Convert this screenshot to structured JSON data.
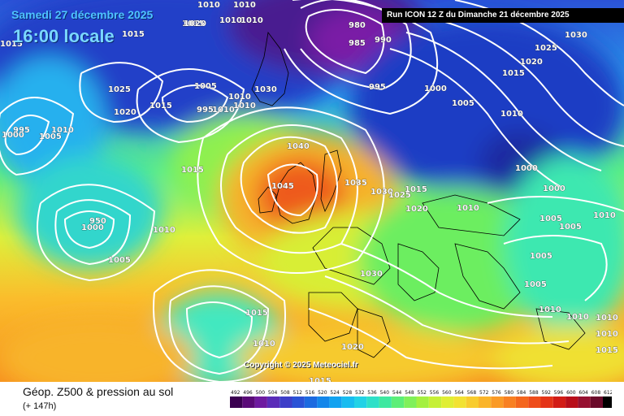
{
  "header": {
    "date_label": "Samedi 27 décembre 2025",
    "time_label": "16:00 locale",
    "run_label": "Run ICON 12 Z du Dimanche 21 décembre 2025"
  },
  "copyright": "Copyright © 2025 Meteociel.fr",
  "footer": {
    "title": "Géop. Z500 & pression au sol",
    "subtitle": "(+ 147h)"
  },
  "legend": {
    "ticks": [
      "492",
      "496",
      "500",
      "504",
      "508",
      "512",
      "516",
      "520",
      "524",
      "528",
      "532",
      "536",
      "540",
      "544",
      "548",
      "552",
      "556",
      "560",
      "564",
      "568",
      "572",
      "576",
      "580",
      "584",
      "588",
      "592",
      "596",
      "600",
      "604",
      "608",
      "612"
    ],
    "colors": [
      "#3a0050",
      "#5a0a78",
      "#6e1aa0",
      "#5a2cb8",
      "#3d3ec8",
      "#2a52d6",
      "#1c6ae0",
      "#1486ea",
      "#12a2f0",
      "#18bcf0",
      "#22d2e6",
      "#2ee0c8",
      "#3ee8a0",
      "#5cee78",
      "#80f05a",
      "#a4f040",
      "#c6f036",
      "#e0ee34",
      "#f2e232",
      "#f8cc2e",
      "#fab42a",
      "#fa9a26",
      "#f88022",
      "#f4661e",
      "#ee4c1a",
      "#e43418",
      "#d21c16",
      "#b80e1a",
      "#961030",
      "#6a0a2a",
      "#000000"
    ]
  },
  "isobar_labels": [
    {
      "id": "l1010a",
      "text": "1010"
    },
    {
      "id": "l1010b",
      "text": "1010"
    },
    {
      "id": "l1010c",
      "text": "1010"
    },
    {
      "id": "l1015a",
      "text": "1015"
    },
    {
      "id": "l1015b",
      "text": "1015"
    },
    {
      "id": "l1020a",
      "text": "1020"
    },
    {
      "id": "l1015c",
      "text": "1015"
    },
    {
      "id": "l1010d",
      "text": "1010"
    },
    {
      "id": "l980",
      "text": "980"
    },
    {
      "id": "l985",
      "text": "985"
    },
    {
      "id": "l990",
      "text": "990"
    },
    {
      "id": "l1030a",
      "text": "1030"
    },
    {
      "id": "l1025a",
      "text": "1025"
    },
    {
      "id": "l1020b",
      "text": "1020"
    },
    {
      "id": "l1015d",
      "text": "1015"
    },
    {
      "id": "l1010e",
      "text": "1010"
    },
    {
      "id": "l1025b",
      "text": "1025"
    },
    {
      "id": "l1020c",
      "text": "1020"
    },
    {
      "id": "l1015e",
      "text": "1015"
    },
    {
      "id": "l1005a",
      "text": "1005"
    },
    {
      "id": "l995a",
      "text": "995"
    },
    {
      "id": "l1010f",
      "text": "1010"
    },
    {
      "id": "l1010g",
      "text": "1010"
    },
    {
      "id": "l1030b",
      "text": "1030"
    },
    {
      "id": "l995b",
      "text": "995"
    },
    {
      "id": "l1000a",
      "text": "1000"
    },
    {
      "id": "l1005b",
      "text": "1005"
    },
    {
      "id": "l1010h",
      "text": "1010"
    },
    {
      "id": "l1000b",
      "text": "1000"
    },
    {
      "id": "l995c",
      "text": "995"
    },
    {
      "id": "l1005c",
      "text": "1005"
    },
    {
      "id": "l1010i",
      "text": "1010"
    },
    {
      "id": "l1040",
      "text": "1040"
    },
    {
      "id": "l1045",
      "text": "1045"
    },
    {
      "id": "l1035",
      "text": "1035"
    },
    {
      "id": "l1030c",
      "text": "1030"
    },
    {
      "id": "l1025c",
      "text": "1025"
    },
    {
      "id": "l1015f",
      "text": "1015"
    },
    {
      "id": "l1020d",
      "text": "1020"
    },
    {
      "id": "l1010j",
      "text": "1010"
    },
    {
      "id": "l1000c",
      "text": "1000"
    },
    {
      "id": "l1000d",
      "text": "1000"
    },
    {
      "id": "l1005d",
      "text": "1005"
    },
    {
      "id": "l1005e",
      "text": "1005"
    },
    {
      "id": "l1010k",
      "text": "1010"
    },
    {
      "id": "l1015g",
      "text": "1015"
    },
    {
      "id": "l950",
      "text": "950"
    },
    {
      "id": "l1000e",
      "text": "1000"
    },
    {
      "id": "l1010l",
      "text": "1010"
    },
    {
      "id": "l1005f",
      "text": "1005"
    },
    {
      "id": "l1005g",
      "text": "1005"
    },
    {
      "id": "l1005h",
      "text": "1005"
    },
    {
      "id": "l1030d",
      "text": "1030"
    },
    {
      "id": "l1015h",
      "text": "1015"
    },
    {
      "id": "l1010m",
      "text": "1010"
    },
    {
      "id": "l1010n",
      "text": "1010"
    },
    {
      "id": "l1010o",
      "text": "1010"
    },
    {
      "id": "l1010p",
      "text": "1010"
    },
    {
      "id": "l1010q",
      "text": "1010"
    },
    {
      "id": "l1015i",
      "text": "1015"
    },
    {
      "id": "l1020e",
      "text": "1020"
    },
    {
      "id": "l1015j",
      "text": "1015"
    }
  ]
}
